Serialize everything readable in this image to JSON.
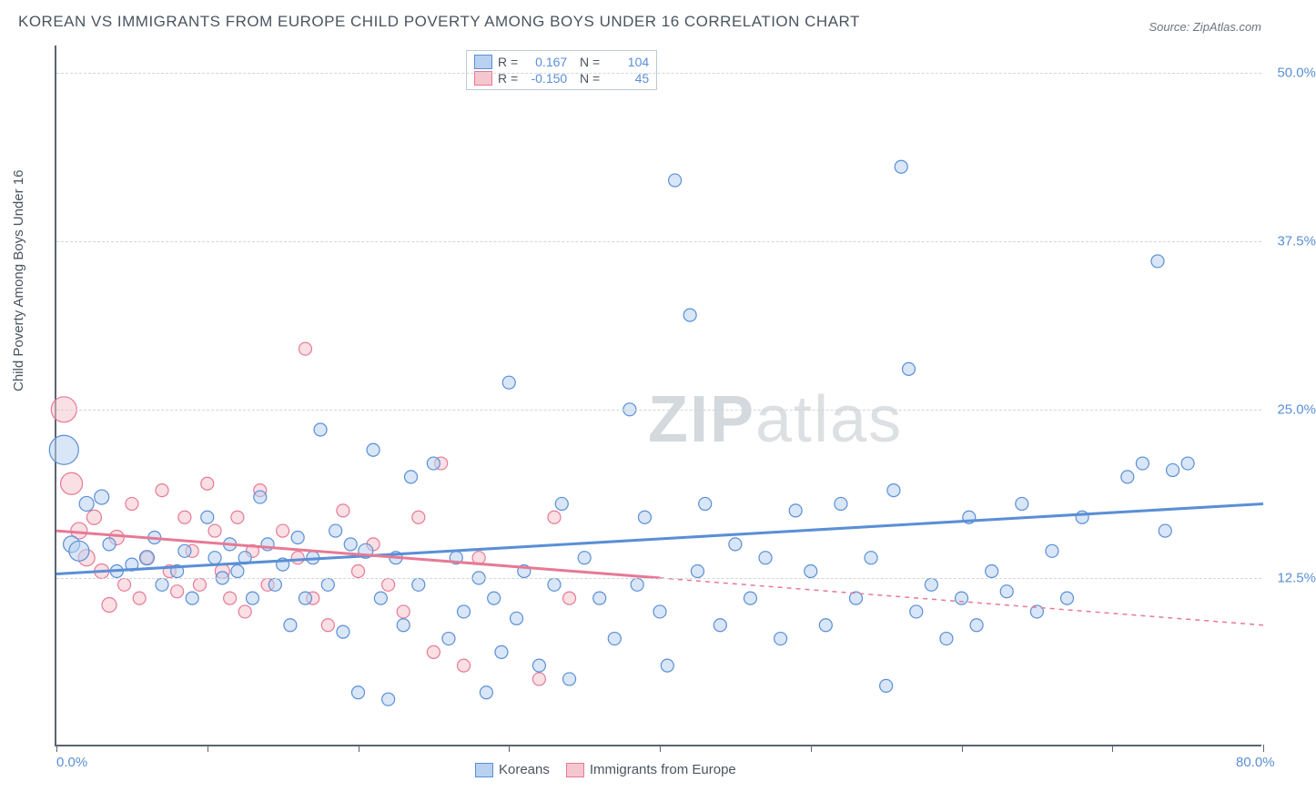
{
  "title": "KOREAN VS IMMIGRANTS FROM EUROPE CHILD POVERTY AMONG BOYS UNDER 16 CORRELATION CHART",
  "source": "Source: ZipAtlas.com",
  "ylabel": "Child Poverty Among Boys Under 16",
  "watermark": {
    "part1": "ZIP",
    "part2": "atlas"
  },
  "chart": {
    "type": "scatter",
    "xlim": [
      0,
      80
    ],
    "ylim": [
      0,
      52
    ],
    "xticks": [
      0,
      10,
      20,
      30,
      40,
      50,
      60,
      70,
      80
    ],
    "xtick_labels": {
      "0": "0.0%",
      "80": "80.0%"
    },
    "yticks": [
      12.5,
      25.0,
      37.5,
      50.0
    ],
    "ytick_labels": [
      "12.5%",
      "25.0%",
      "37.5%",
      "50.0%"
    ],
    "grid_color": "#d0d5da",
    "axis_color": "#5a6570",
    "background_color": "#ffffff",
    "series": [
      {
        "name": "Koreans",
        "color_fill": "#b8d1f0",
        "color_stroke": "#5a8fd6",
        "fill_opacity": 0.55,
        "stats": {
          "R": "0.167",
          "N": "104"
        },
        "trend": {
          "x1": 0,
          "y1": 12.8,
          "x2": 80,
          "y2": 18.0,
          "dash_after_x": null
        },
        "points": [
          {
            "x": 0.5,
            "y": 22,
            "r": 16
          },
          {
            "x": 1,
            "y": 15,
            "r": 9
          },
          {
            "x": 1.5,
            "y": 14.5,
            "r": 11
          },
          {
            "x": 2,
            "y": 18,
            "r": 8
          },
          {
            "x": 3,
            "y": 18.5,
            "r": 8
          },
          {
            "x": 3.5,
            "y": 15,
            "r": 7
          },
          {
            "x": 4,
            "y": 13,
            "r": 7
          },
          {
            "x": 5,
            "y": 13.5,
            "r": 7
          },
          {
            "x": 6,
            "y": 14,
            "r": 8
          },
          {
            "x": 6.5,
            "y": 15.5,
            "r": 7
          },
          {
            "x": 7,
            "y": 12,
            "r": 7
          },
          {
            "x": 8,
            "y": 13,
            "r": 7
          },
          {
            "x": 8.5,
            "y": 14.5,
            "r": 7
          },
          {
            "x": 9,
            "y": 11,
            "r": 7
          },
          {
            "x": 10,
            "y": 17,
            "r": 7
          },
          {
            "x": 10.5,
            "y": 14,
            "r": 7
          },
          {
            "x": 11,
            "y": 12.5,
            "r": 7
          },
          {
            "x": 11.5,
            "y": 15,
            "r": 7
          },
          {
            "x": 12,
            "y": 13,
            "r": 7
          },
          {
            "x": 12.5,
            "y": 14,
            "r": 7
          },
          {
            "x": 13,
            "y": 11,
            "r": 7
          },
          {
            "x": 13.5,
            "y": 18.5,
            "r": 7
          },
          {
            "x": 14,
            "y": 15,
            "r": 7
          },
          {
            "x": 14.5,
            "y": 12,
            "r": 7
          },
          {
            "x": 15,
            "y": 13.5,
            "r": 7
          },
          {
            "x": 15.5,
            "y": 9,
            "r": 7
          },
          {
            "x": 16,
            "y": 15.5,
            "r": 7
          },
          {
            "x": 16.5,
            "y": 11,
            "r": 7
          },
          {
            "x": 17,
            "y": 14,
            "r": 7
          },
          {
            "x": 17.5,
            "y": 23.5,
            "r": 7
          },
          {
            "x": 18,
            "y": 12,
            "r": 7
          },
          {
            "x": 18.5,
            "y": 16,
            "r": 7
          },
          {
            "x": 19,
            "y": 8.5,
            "r": 7
          },
          {
            "x": 19.5,
            "y": 15,
            "r": 7
          },
          {
            "x": 20,
            "y": 4,
            "r": 7
          },
          {
            "x": 20.5,
            "y": 14.5,
            "r": 8
          },
          {
            "x": 21,
            "y": 22,
            "r": 7
          },
          {
            "x": 21.5,
            "y": 11,
            "r": 7
          },
          {
            "x": 22,
            "y": 3.5,
            "r": 7
          },
          {
            "x": 22.5,
            "y": 14,
            "r": 7
          },
          {
            "x": 23,
            "y": 9,
            "r": 7
          },
          {
            "x": 23.5,
            "y": 20,
            "r": 7
          },
          {
            "x": 24,
            "y": 12,
            "r": 7
          },
          {
            "x": 25,
            "y": 21,
            "r": 7
          },
          {
            "x": 26,
            "y": 8,
            "r": 7
          },
          {
            "x": 26.5,
            "y": 14,
            "r": 7
          },
          {
            "x": 27,
            "y": 10,
            "r": 7
          },
          {
            "x": 28,
            "y": 12.5,
            "r": 7
          },
          {
            "x": 28.5,
            "y": 4,
            "r": 7
          },
          {
            "x": 29,
            "y": 11,
            "r": 7
          },
          {
            "x": 29.5,
            "y": 7,
            "r": 7
          },
          {
            "x": 30,
            "y": 27,
            "r": 7
          },
          {
            "x": 30.5,
            "y": 9.5,
            "r": 7
          },
          {
            "x": 31,
            "y": 13,
            "r": 7
          },
          {
            "x": 32,
            "y": 6,
            "r": 7
          },
          {
            "x": 33,
            "y": 12,
            "r": 7
          },
          {
            "x": 33.5,
            "y": 18,
            "r": 7
          },
          {
            "x": 34,
            "y": 5,
            "r": 7
          },
          {
            "x": 35,
            "y": 14,
            "r": 7
          },
          {
            "x": 36,
            "y": 11,
            "r": 7
          },
          {
            "x": 37,
            "y": 8,
            "r": 7
          },
          {
            "x": 38,
            "y": 25,
            "r": 7
          },
          {
            "x": 38.5,
            "y": 12,
            "r": 7
          },
          {
            "x": 39,
            "y": 17,
            "r": 7
          },
          {
            "x": 40,
            "y": 10,
            "r": 7
          },
          {
            "x": 40.5,
            "y": 6,
            "r": 7
          },
          {
            "x": 41,
            "y": 42,
            "r": 7
          },
          {
            "x": 42,
            "y": 32,
            "r": 7
          },
          {
            "x": 42.5,
            "y": 13,
            "r": 7
          },
          {
            "x": 43,
            "y": 18,
            "r": 7
          },
          {
            "x": 44,
            "y": 9,
            "r": 7
          },
          {
            "x": 45,
            "y": 15,
            "r": 7
          },
          {
            "x": 46,
            "y": 11,
            "r": 7
          },
          {
            "x": 47,
            "y": 14,
            "r": 7
          },
          {
            "x": 48,
            "y": 8,
            "r": 7
          },
          {
            "x": 49,
            "y": 17.5,
            "r": 7
          },
          {
            "x": 50,
            "y": 13,
            "r": 7
          },
          {
            "x": 51,
            "y": 9,
            "r": 7
          },
          {
            "x": 52,
            "y": 18,
            "r": 7
          },
          {
            "x": 53,
            "y": 11,
            "r": 7
          },
          {
            "x": 54,
            "y": 14,
            "r": 7
          },
          {
            "x": 55,
            "y": 4.5,
            "r": 7
          },
          {
            "x": 55.5,
            "y": 19,
            "r": 7
          },
          {
            "x": 56,
            "y": 43,
            "r": 7
          },
          {
            "x": 56.5,
            "y": 28,
            "r": 7
          },
          {
            "x": 57,
            "y": 10,
            "r": 7
          },
          {
            "x": 58,
            "y": 12,
            "r": 7
          },
          {
            "x": 59,
            "y": 8,
            "r": 7
          },
          {
            "x": 60,
            "y": 11,
            "r": 7
          },
          {
            "x": 60.5,
            "y": 17,
            "r": 7
          },
          {
            "x": 61,
            "y": 9,
            "r": 7
          },
          {
            "x": 62,
            "y": 13,
            "r": 7
          },
          {
            "x": 63,
            "y": 11.5,
            "r": 7
          },
          {
            "x": 64,
            "y": 18,
            "r": 7
          },
          {
            "x": 65,
            "y": 10,
            "r": 7
          },
          {
            "x": 66,
            "y": 14.5,
            "r": 7
          },
          {
            "x": 67,
            "y": 11,
            "r": 7
          },
          {
            "x": 68,
            "y": 17,
            "r": 7
          },
          {
            "x": 71,
            "y": 20,
            "r": 7
          },
          {
            "x": 72,
            "y": 21,
            "r": 7
          },
          {
            "x": 73,
            "y": 36,
            "r": 7
          },
          {
            "x": 73.5,
            "y": 16,
            "r": 7
          },
          {
            "x": 74,
            "y": 20.5,
            "r": 7
          },
          {
            "x": 75,
            "y": 21,
            "r": 7
          }
        ]
      },
      {
        "name": "Immigrants from Europe",
        "color_fill": "#f5c5d0",
        "color_stroke": "#e67a95",
        "fill_opacity": 0.55,
        "stats": {
          "R": "-0.150",
          "N": "45"
        },
        "trend": {
          "x1": 0,
          "y1": 16.0,
          "x2": 80,
          "y2": 9.0,
          "dash_after_x": 40
        },
        "points": [
          {
            "x": 0.5,
            "y": 25,
            "r": 14
          },
          {
            "x": 1,
            "y": 19.5,
            "r": 12
          },
          {
            "x": 1.5,
            "y": 16,
            "r": 9
          },
          {
            "x": 2,
            "y": 14,
            "r": 9
          },
          {
            "x": 2.5,
            "y": 17,
            "r": 8
          },
          {
            "x": 3,
            "y": 13,
            "r": 8
          },
          {
            "x": 3.5,
            "y": 10.5,
            "r": 8
          },
          {
            "x": 4,
            "y": 15.5,
            "r": 8
          },
          {
            "x": 4.5,
            "y": 12,
            "r": 7
          },
          {
            "x": 5,
            "y": 18,
            "r": 7
          },
          {
            "x": 5.5,
            "y": 11,
            "r": 7
          },
          {
            "x": 6,
            "y": 14,
            "r": 7
          },
          {
            "x": 7,
            "y": 19,
            "r": 7
          },
          {
            "x": 7.5,
            "y": 13,
            "r": 7
          },
          {
            "x": 8,
            "y": 11.5,
            "r": 7
          },
          {
            "x": 8.5,
            "y": 17,
            "r": 7
          },
          {
            "x": 9,
            "y": 14.5,
            "r": 7
          },
          {
            "x": 9.5,
            "y": 12,
            "r": 7
          },
          {
            "x": 10,
            "y": 19.5,
            "r": 7
          },
          {
            "x": 10.5,
            "y": 16,
            "r": 7
          },
          {
            "x": 11,
            "y": 13,
            "r": 8
          },
          {
            "x": 11.5,
            "y": 11,
            "r": 7
          },
          {
            "x": 12,
            "y": 17,
            "r": 7
          },
          {
            "x": 12.5,
            "y": 10,
            "r": 7
          },
          {
            "x": 13,
            "y": 14.5,
            "r": 7
          },
          {
            "x": 13.5,
            "y": 19,
            "r": 7
          },
          {
            "x": 14,
            "y": 12,
            "r": 7
          },
          {
            "x": 15,
            "y": 16,
            "r": 7
          },
          {
            "x": 16,
            "y": 14,
            "r": 7
          },
          {
            "x": 16.5,
            "y": 29.5,
            "r": 7
          },
          {
            "x": 17,
            "y": 11,
            "r": 7
          },
          {
            "x": 18,
            "y": 9,
            "r": 7
          },
          {
            "x": 19,
            "y": 17.5,
            "r": 7
          },
          {
            "x": 20,
            "y": 13,
            "r": 7
          },
          {
            "x": 21,
            "y": 15,
            "r": 7
          },
          {
            "x": 22,
            "y": 12,
            "r": 7
          },
          {
            "x": 23,
            "y": 10,
            "r": 7
          },
          {
            "x": 24,
            "y": 17,
            "r": 7
          },
          {
            "x": 25,
            "y": 7,
            "r": 7
          },
          {
            "x": 25.5,
            "y": 21,
            "r": 7
          },
          {
            "x": 27,
            "y": 6,
            "r": 7
          },
          {
            "x": 28,
            "y": 14,
            "r": 7
          },
          {
            "x": 32,
            "y": 5,
            "r": 7
          },
          {
            "x": 33,
            "y": 17,
            "r": 7
          },
          {
            "x": 34,
            "y": 11,
            "r": 7
          }
        ]
      }
    ]
  },
  "bottom_legend": [
    {
      "label": "Koreans",
      "fill": "#b8d1f0",
      "stroke": "#5a8fd6"
    },
    {
      "label": "Immigrants from Europe",
      "fill": "#f5c5d0",
      "stroke": "#e67a95"
    }
  ]
}
